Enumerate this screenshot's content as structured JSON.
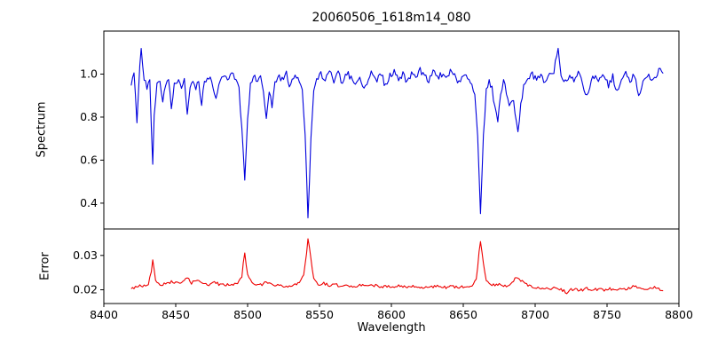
{
  "chart_data": {
    "type": "line",
    "title": "20060506_1618m14_080",
    "xlabel": "Wavelength",
    "xlim": [
      8400,
      8800
    ],
    "x_ticks": [
      8400,
      8450,
      8500,
      8550,
      8600,
      8650,
      8700,
      8750,
      8800
    ],
    "x_tick_labels": [
      "8400",
      "8450",
      "8500",
      "8550",
      "8600",
      "8650",
      "8700",
      "8750",
      "8800"
    ],
    "grid": false,
    "legend": "none",
    "panels": [
      {
        "name": "spectrum",
        "ylabel": "Spectrum",
        "ylim": [
          0.28,
          1.2
        ],
        "y_ticks": [
          0.4,
          0.6,
          0.8,
          1.0
        ],
        "y_tick_labels": [
          "0.4",
          "0.6",
          "0.8",
          "1.0"
        ],
        "color": "#0000dd",
        "noise_amplitude": 0.015,
        "x_range": [
          8419,
          8789
        ],
        "anchors": [
          [
            8419,
            0.96
          ],
          [
            8421,
            1.02
          ],
          [
            8423,
            0.78
          ],
          [
            8425,
            1.05
          ],
          [
            8426,
            1.11
          ],
          [
            8428,
            0.98
          ],
          [
            8430,
            0.93
          ],
          [
            8432,
            0.97
          ],
          [
            8433,
            0.75
          ],
          [
            8434,
            0.59
          ],
          [
            8435,
            0.8
          ],
          [
            8437,
            0.96
          ],
          [
            8439,
            0.97
          ],
          [
            8441,
            0.86
          ],
          [
            8443,
            0.95
          ],
          [
            8445,
            0.97
          ],
          [
            8447,
            0.84
          ],
          [
            8449,
            0.95
          ],
          [
            8452,
            0.98
          ],
          [
            8454,
            0.92
          ],
          [
            8456,
            0.97
          ],
          [
            8458,
            0.81
          ],
          [
            8460,
            0.95
          ],
          [
            8462,
            0.98
          ],
          [
            8464,
            0.93
          ],
          [
            8466,
            0.97
          ],
          [
            8468,
            0.86
          ],
          [
            8470,
            0.96
          ],
          [
            8473,
            0.99
          ],
          [
            8476,
            0.94
          ],
          [
            8478,
            0.89
          ],
          [
            8480,
            0.96
          ],
          [
            8483,
            0.99
          ],
          [
            8486,
            0.97
          ],
          [
            8489,
            1.0
          ],
          [
            8492,
            0.98
          ],
          [
            8494,
            0.93
          ],
          [
            8496,
            0.75
          ],
          [
            8498,
            0.52
          ],
          [
            8500,
            0.78
          ],
          [
            8502,
            0.95
          ],
          [
            8504,
            0.99
          ],
          [
            8506,
            0.97
          ],
          [
            8509,
            1.0
          ],
          [
            8511,
            0.93
          ],
          [
            8513,
            0.8
          ],
          [
            8515,
            0.92
          ],
          [
            8517,
            0.85
          ],
          [
            8519,
            0.95
          ],
          [
            8522,
            0.99
          ],
          [
            8525,
            0.97
          ],
          [
            8527,
            1.0
          ],
          [
            8529,
            0.93
          ],
          [
            8531,
            0.98
          ],
          [
            8534,
            0.99
          ],
          [
            8536,
            0.96
          ],
          [
            8538,
            0.93
          ],
          [
            8540,
            0.72
          ],
          [
            8542,
            0.33
          ],
          [
            8544,
            0.7
          ],
          [
            8546,
            0.92
          ],
          [
            8548,
            0.97
          ],
          [
            8551,
            1.0
          ],
          [
            8554,
            0.98
          ],
          [
            8557,
            1.02
          ],
          [
            8560,
            0.97
          ],
          [
            8563,
            1.0
          ],
          [
            8566,
            0.96
          ],
          [
            8569,
            1.01
          ],
          [
            8572,
            0.98
          ],
          [
            8575,
            0.95
          ],
          [
            8578,
            1.0
          ],
          [
            8581,
            0.92
          ],
          [
            8584,
            0.98
          ],
          [
            8587,
            1.01
          ],
          [
            8590,
            0.97
          ],
          [
            8593,
            1.0
          ],
          [
            8596,
            0.94
          ],
          [
            8599,
            0.99
          ],
          [
            8602,
            1.02
          ],
          [
            8605,
            0.97
          ],
          [
            8608,
            1.0
          ],
          [
            8611,
            0.96
          ],
          [
            8614,
            1.0
          ],
          [
            8617,
            0.98
          ],
          [
            8620,
            1.02
          ],
          [
            8623,
            0.99
          ],
          [
            8626,
            0.97
          ],
          [
            8629,
            1.01
          ],
          [
            8632,
            0.98
          ],
          [
            8635,
            1.0
          ],
          [
            8638,
            0.97
          ],
          [
            8641,
            1.02
          ],
          [
            8644,
            0.99
          ],
          [
            8647,
            0.96
          ],
          [
            8650,
            1.0
          ],
          [
            8653,
            0.98
          ],
          [
            8656,
            0.96
          ],
          [
            8658,
            0.9
          ],
          [
            8660,
            0.7
          ],
          [
            8662,
            0.35
          ],
          [
            8664,
            0.72
          ],
          [
            8666,
            0.92
          ],
          [
            8668,
            0.97
          ],
          [
            8670,
            0.93
          ],
          [
            8672,
            0.85
          ],
          [
            8674,
            0.79
          ],
          [
            8676,
            0.9
          ],
          [
            8678,
            0.96
          ],
          [
            8680,
            0.92
          ],
          [
            8682,
            0.85
          ],
          [
            8685,
            0.88
          ],
          [
            8688,
            0.72
          ],
          [
            8690,
            0.85
          ],
          [
            8692,
            0.95
          ],
          [
            8695,
            0.98
          ],
          [
            8698,
            1.0
          ],
          [
            8701,
            0.97
          ],
          [
            8704,
            1.0
          ],
          [
            8707,
            0.96
          ],
          [
            8710,
            0.99
          ],
          [
            8713,
            1.01
          ],
          [
            8716,
            1.13
          ],
          [
            8718,
            0.99
          ],
          [
            8721,
            0.96
          ],
          [
            8724,
            1.0
          ],
          [
            8727,
            0.97
          ],
          [
            8730,
            1.01
          ],
          [
            8733,
            0.95
          ],
          [
            8736,
            0.89
          ],
          [
            8739,
            0.98
          ],
          [
            8742,
            1.0
          ],
          [
            8745,
            0.97
          ],
          [
            8748,
            1.0
          ],
          [
            8751,
            0.95
          ],
          [
            8754,
            0.99
          ],
          [
            8757,
            0.91
          ],
          [
            8760,
            0.98
          ],
          [
            8763,
            1.01
          ],
          [
            8766,
            0.97
          ],
          [
            8769,
            1.0
          ],
          [
            8772,
            0.89
          ],
          [
            8775,
            0.97
          ],
          [
            8778,
            1.0
          ],
          [
            8781,
            0.96
          ],
          [
            8784,
            0.99
          ],
          [
            8787,
            1.03
          ],
          [
            8789,
            1.01
          ]
        ]
      },
      {
        "name": "error",
        "ylabel": "Error",
        "ylim": [
          0.016,
          0.0377
        ],
        "y_ticks": [
          0.02,
          0.03
        ],
        "y_tick_labels": [
          "0.02",
          "0.03"
        ],
        "color": "#ee0000",
        "noise_amplitude": 0.00042,
        "x_range": [
          8419,
          8789
        ],
        "anchors": [
          [
            8419,
            0.0205
          ],
          [
            8424,
            0.021
          ],
          [
            8428,
            0.0212
          ],
          [
            8431,
            0.0218
          ],
          [
            8433,
            0.0255
          ],
          [
            8434,
            0.029
          ],
          [
            8436,
            0.0225
          ],
          [
            8440,
            0.0215
          ],
          [
            8444,
            0.022
          ],
          [
            8448,
            0.0224
          ],
          [
            8452,
            0.0218
          ],
          [
            8456,
            0.0228
          ],
          [
            8458,
            0.0235
          ],
          [
            8461,
            0.022
          ],
          [
            8465,
            0.0228
          ],
          [
            8469,
            0.022
          ],
          [
            8473,
            0.0216
          ],
          [
            8477,
            0.0221
          ],
          [
            8481,
            0.0215
          ],
          [
            8485,
            0.0214
          ],
          [
            8489,
            0.0215
          ],
          [
            8493,
            0.0222
          ],
          [
            8496,
            0.024
          ],
          [
            8498,
            0.031
          ],
          [
            8500,
            0.0242
          ],
          [
            8503,
            0.022
          ],
          [
            8506,
            0.0215
          ],
          [
            8510,
            0.0213
          ],
          [
            8513,
            0.0226
          ],
          [
            8516,
            0.0216
          ],
          [
            8520,
            0.0212
          ],
          [
            8524,
            0.0211
          ],
          [
            8528,
            0.0212
          ],
          [
            8532,
            0.0214
          ],
          [
            8536,
            0.0218
          ],
          [
            8539,
            0.0242
          ],
          [
            8541,
            0.0305
          ],
          [
            8542,
            0.035
          ],
          [
            8544,
            0.0288
          ],
          [
            8546,
            0.023
          ],
          [
            8549,
            0.0216
          ],
          [
            8553,
            0.0218
          ],
          [
            8557,
            0.0213
          ],
          [
            8561,
            0.0215
          ],
          [
            8565,
            0.0211
          ],
          [
            8569,
            0.0214
          ],
          [
            8573,
            0.0209
          ],
          [
            8577,
            0.0213
          ],
          [
            8581,
            0.0216
          ],
          [
            8585,
            0.021
          ],
          [
            8589,
            0.0213
          ],
          [
            8593,
            0.0209
          ],
          [
            8597,
            0.0211
          ],
          [
            8601,
            0.021
          ],
          [
            8605,
            0.0212
          ],
          [
            8609,
            0.0208
          ],
          [
            8613,
            0.0211
          ],
          [
            8617,
            0.0208
          ],
          [
            8621,
            0.0207
          ],
          [
            8625,
            0.021
          ],
          [
            8629,
            0.0208
          ],
          [
            8633,
            0.021
          ],
          [
            8637,
            0.0207
          ],
          [
            8641,
            0.0209
          ],
          [
            8645,
            0.0208
          ],
          [
            8649,
            0.0208
          ],
          [
            8653,
            0.021
          ],
          [
            8656,
            0.0214
          ],
          [
            8659,
            0.0228
          ],
          [
            8661,
            0.031
          ],
          [
            8662,
            0.034
          ],
          [
            8664,
            0.0278
          ],
          [
            8666,
            0.0226
          ],
          [
            8669,
            0.0213
          ],
          [
            8672,
            0.0215
          ],
          [
            8675,
            0.0218
          ],
          [
            8679,
            0.0212
          ],
          [
            8683,
            0.0214
          ],
          [
            8687,
            0.0238
          ],
          [
            8690,
            0.0228
          ],
          [
            8693,
            0.0216
          ],
          [
            8697,
            0.021
          ],
          [
            8701,
            0.0208
          ],
          [
            8705,
            0.0205
          ],
          [
            8709,
            0.0203
          ],
          [
            8713,
            0.0205
          ],
          [
            8717,
            0.0201
          ],
          [
            8720,
            0.0198
          ],
          [
            8722,
            0.0186
          ],
          [
            8724,
            0.02
          ],
          [
            8728,
            0.0202
          ],
          [
            8732,
            0.0199
          ],
          [
            8736,
            0.0205
          ],
          [
            8740,
            0.02
          ],
          [
            8744,
            0.0202
          ],
          [
            8748,
            0.0198
          ],
          [
            8752,
            0.0202
          ],
          [
            8756,
            0.0203
          ],
          [
            8760,
            0.02
          ],
          [
            8764,
            0.0202
          ],
          [
            8768,
            0.021
          ],
          [
            8772,
            0.0205
          ],
          [
            8776,
            0.02
          ],
          [
            8780,
            0.0204
          ],
          [
            8783,
            0.0209
          ],
          [
            8786,
            0.0204
          ],
          [
            8789,
            0.0196
          ]
        ]
      }
    ]
  }
}
